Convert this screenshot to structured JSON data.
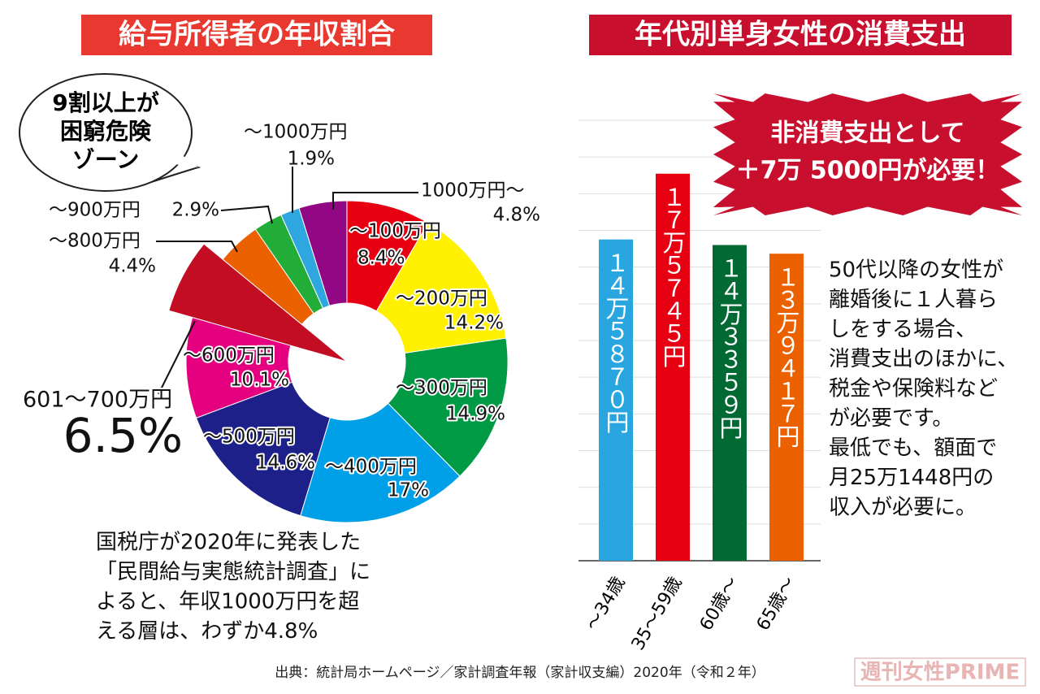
{
  "chart_data": [
    {
      "type": "donut",
      "title": "給与所得者の年収割合",
      "categories": [
        "〜100万円",
        "〜200万円",
        "〜300万円",
        "〜400万円",
        "〜500万円",
        "〜600万円",
        "601〜700万円",
        "〜800万円",
        "〜900万円",
        "〜1000万円",
        "1000万円〜"
      ],
      "values": [
        8.4,
        14.2,
        14.9,
        17,
        14.6,
        10.1,
        6.5,
        4.4,
        2.9,
        1.9,
        4.8
      ],
      "value_labels": [
        "8.4%",
        "14.2%",
        "14.9%",
        "17%",
        "14.6%",
        "10.1%",
        "6.5%",
        "4.4%",
        "2.9%",
        "1.9%",
        "4.8%"
      ],
      "colors": [
        "#e60012",
        "#fff100",
        "#009944",
        "#00a0e9",
        "#1d2088",
        "#e4007f",
        "#c30d23",
        "#eb6100",
        "#22ac38",
        "#2ea7e0",
        "#920783"
      ],
      "annotation": [
        "9割以上が",
        "困窮危険",
        "ゾーン"
      ],
      "note": [
        "国税庁が2020年に発表した",
        "「民間給与実態統計調査」に",
        "よると、年収1000万円を超",
        "える層は、わずか4.8%"
      ]
    },
    {
      "type": "bar",
      "title": "年代別単身女性の消費支出",
      "categories": [
        "〜34歳",
        "35〜59歳",
        "60歳〜",
        "65歳〜"
      ],
      "values": [
        145870,
        175745,
        143359,
        139417
      ],
      "value_labels": [
        "１４万５８７０円",
        "１７万５７４５円",
        "１４万３３５９円",
        "１３万９４１７円"
      ],
      "colors": [
        "#29a6e0",
        "#e60012",
        "#006934",
        "#eb6100"
      ],
      "ylim": [
        0,
        200000
      ],
      "yticks": [
        0,
        16667,
        33333,
        50000,
        66667,
        83333,
        100000,
        116667,
        133333,
        150000,
        166667,
        183333,
        200000
      ],
      "grid": true,
      "annotation": [
        "非消費支出として",
        "＋7万 5000円が必要！"
      ],
      "note": [
        "50代以降の女性が",
        "離婚後に１人暮ら",
        "しをする場合、",
        "消費支出のほかに、",
        "税金や保険料など",
        "が必要です。",
        "最低でも、額面で",
        "月25万1448円の",
        "収入が必要に。"
      ]
    }
  ],
  "source": "出典：統計局ホームページ／家計調査年報（家計収支編）2020年（令和２年）",
  "logo": "週刊女性PRIME"
}
